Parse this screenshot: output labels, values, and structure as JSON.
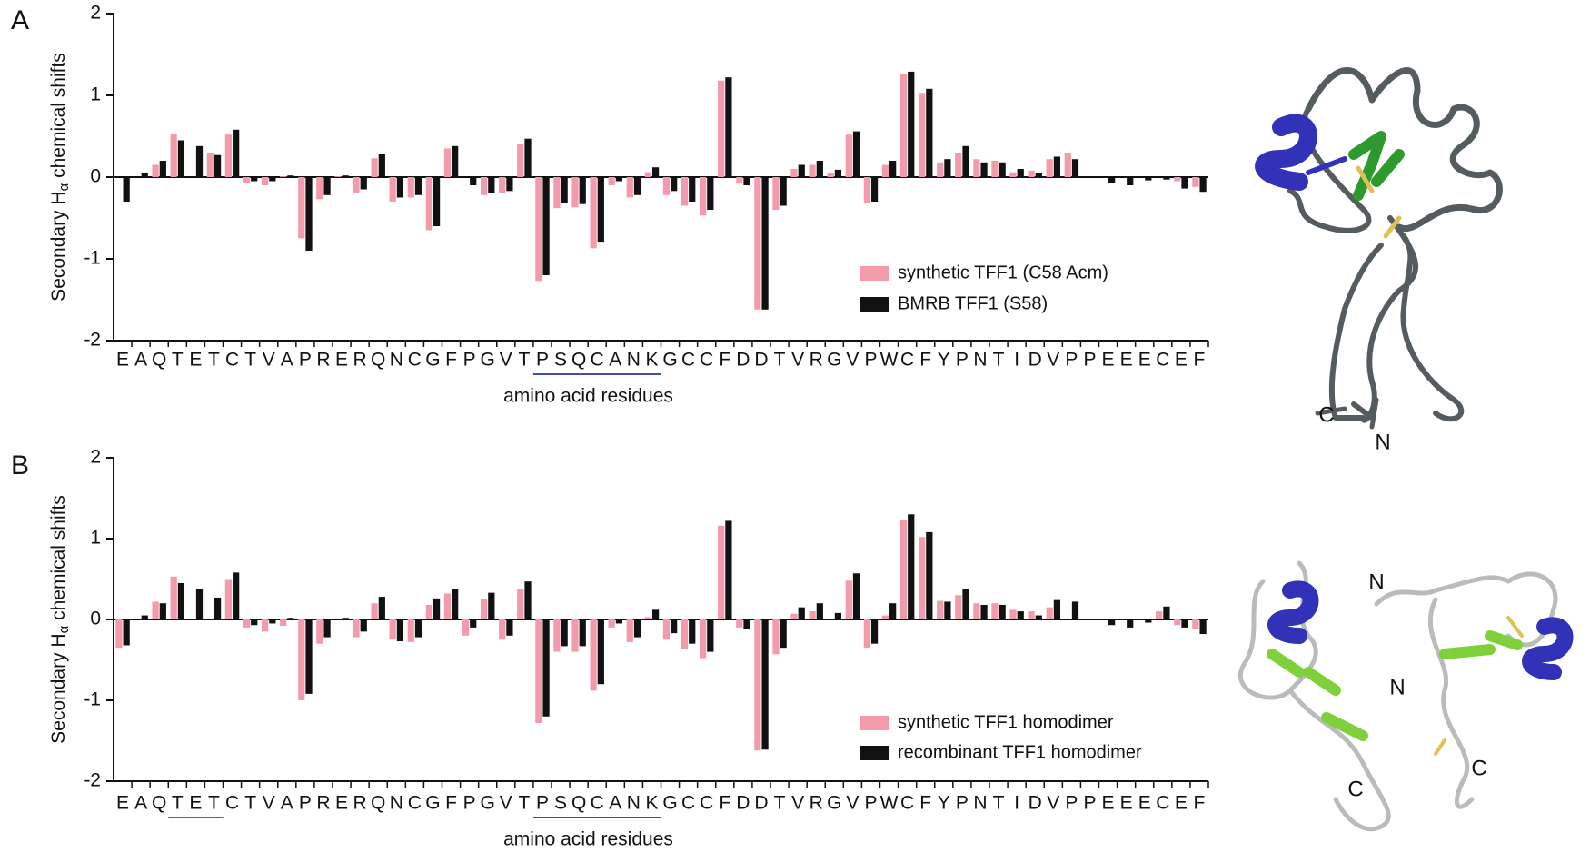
{
  "chart_data": [
    {
      "type": "bar",
      "panel": "A",
      "y_label": [
        "Secondary H",
        "α",
        " chemical shifts"
      ],
      "x_label": "amino acid residues",
      "categories": [
        "E",
        "A",
        "Q",
        "T",
        "E",
        "T",
        "C",
        "T",
        "V",
        "A",
        "P",
        "R",
        "E",
        "R",
        "Q",
        "N",
        "C",
        "G",
        "F",
        "P",
        "G",
        "V",
        "T",
        "P",
        "S",
        "Q",
        "C",
        "A",
        "N",
        "K",
        "G",
        "C",
        "C",
        "F",
        "D",
        "D",
        "T",
        "V",
        "R",
        "G",
        "V",
        "P",
        "W",
        "C",
        "F",
        "Y",
        "P",
        "N",
        "T",
        "I",
        "D",
        "V",
        "P",
        "P",
        "E",
        "E",
        "E",
        "C",
        "E",
        "F"
      ],
      "ylim": [
        -2,
        2
      ],
      "yticks": [
        -2,
        -1,
        0,
        1,
        2
      ],
      "highlights": [
        {
          "from": 23,
          "to": 29,
          "color": "#3a4db5"
        }
      ],
      "series": [
        {
          "name": "synthetic TFF1 (C58 Acm)",
          "color": "#f49bab",
          "values": [
            null,
            null,
            0.15,
            0.53,
            null,
            0.3,
            0.52,
            -0.07,
            -0.1,
            0.01,
            -0.75,
            -0.27,
            0.01,
            -0.2,
            0.23,
            -0.3,
            -0.25,
            -0.65,
            0.35,
            null,
            -0.22,
            -0.2,
            0.4,
            -1.27,
            -0.38,
            -0.37,
            -0.87,
            -0.1,
            -0.25,
            0.06,
            -0.22,
            -0.35,
            -0.47,
            1.18,
            -0.08,
            -1.62,
            -0.4,
            0.1,
            0.15,
            0.05,
            0.52,
            -0.32,
            0.15,
            1.26,
            1.03,
            0.18,
            0.3,
            0.22,
            0.2,
            0.06,
            0.08,
            0.22,
            0.3,
            null,
            null,
            null,
            null,
            null,
            -0.05,
            -0.12
          ]
        },
        {
          "name": "BMRB TFF1 (S58)",
          "color": "#111111",
          "values": [
            -0.3,
            0.05,
            0.2,
            0.45,
            0.38,
            0.27,
            0.58,
            -0.05,
            -0.05,
            0.02,
            -0.9,
            -0.22,
            0.02,
            -0.15,
            0.28,
            -0.25,
            -0.22,
            -0.6,
            0.38,
            -0.1,
            -0.2,
            -0.17,
            0.47,
            -1.2,
            -0.32,
            -0.33,
            -0.79,
            -0.05,
            -0.22,
            0.12,
            -0.17,
            -0.3,
            -0.4,
            1.22,
            -0.1,
            -1.62,
            -0.35,
            0.15,
            0.2,
            0.09,
            0.56,
            -0.3,
            0.2,
            1.29,
            1.08,
            0.22,
            0.38,
            0.18,
            0.18,
            0.1,
            0.05,
            0.25,
            0.22,
            null,
            -0.07,
            -0.1,
            -0.04,
            -0.03,
            -0.14,
            -0.18
          ]
        }
      ],
      "structure_labels": [
        "C",
        "N"
      ]
    },
    {
      "type": "bar",
      "panel": "B",
      "y_label": [
        "Secondary H",
        "α",
        " chemical shifts"
      ],
      "x_label": "amino acid residues",
      "categories": [
        "E",
        "A",
        "Q",
        "T",
        "E",
        "T",
        "C",
        "T",
        "V",
        "A",
        "P",
        "R",
        "E",
        "R",
        "Q",
        "N",
        "C",
        "G",
        "F",
        "P",
        "G",
        "V",
        "T",
        "P",
        "S",
        "Q",
        "C",
        "A",
        "N",
        "K",
        "G",
        "C",
        "C",
        "F",
        "D",
        "D",
        "T",
        "V",
        "R",
        "G",
        "V",
        "P",
        "W",
        "C",
        "F",
        "Y",
        "P",
        "N",
        "T",
        "I",
        "D",
        "V",
        "P",
        "P",
        "E",
        "E",
        "E",
        "C",
        "E",
        "F"
      ],
      "ylim": [
        -2,
        2
      ],
      "yticks": [
        -2,
        -1,
        0,
        1,
        2
      ],
      "highlights": [
        {
          "from": 3,
          "to": 5,
          "color": "#2e8b2e"
        },
        {
          "from": 23,
          "to": 29,
          "color": "#3a4db5"
        }
      ],
      "series": [
        {
          "name": "synthetic TFF1 homodimer",
          "color": "#f49bab",
          "values": [
            -0.35,
            null,
            0.22,
            0.53,
            null,
            null,
            0.5,
            -0.1,
            -0.15,
            -0.08,
            -1.0,
            -0.3,
            null,
            -0.22,
            0.2,
            -0.25,
            -0.28,
            0.18,
            0.32,
            -0.2,
            0.25,
            -0.25,
            0.38,
            -1.28,
            -0.4,
            -0.4,
            -0.88,
            -0.1,
            -0.28,
            0.03,
            -0.25,
            -0.37,
            -0.48,
            1.16,
            -0.1,
            -1.62,
            -0.43,
            0.07,
            0.1,
            null,
            0.48,
            -0.35,
            0.05,
            1.23,
            1.02,
            0.23,
            0.3,
            0.2,
            0.2,
            0.12,
            0.1,
            0.15,
            null,
            null,
            null,
            null,
            null,
            0.1,
            -0.07,
            -0.12
          ]
        },
        {
          "name": "recombinant TFF1 homodimer",
          "color": "#111111",
          "values": [
            -0.32,
            0.05,
            0.2,
            0.45,
            0.38,
            0.27,
            0.58,
            -0.07,
            -0.05,
            0.02,
            -0.92,
            -0.22,
            0.02,
            -0.15,
            0.28,
            -0.27,
            -0.22,
            0.26,
            0.38,
            -0.1,
            0.33,
            -0.2,
            0.47,
            -1.2,
            -0.33,
            -0.33,
            -0.8,
            -0.05,
            -0.22,
            0.12,
            -0.17,
            -0.3,
            -0.4,
            1.22,
            -0.12,
            -1.61,
            -0.35,
            0.15,
            0.2,
            0.08,
            0.57,
            -0.3,
            0.2,
            1.3,
            1.08,
            0.22,
            0.38,
            0.18,
            0.18,
            0.1,
            0.05,
            0.24,
            0.22,
            null,
            -0.07,
            -0.1,
            -0.04,
            0.16,
            -0.1,
            -0.18
          ]
        }
      ],
      "structure_labels": [
        "N",
        "N",
        "C",
        "C"
      ]
    }
  ]
}
